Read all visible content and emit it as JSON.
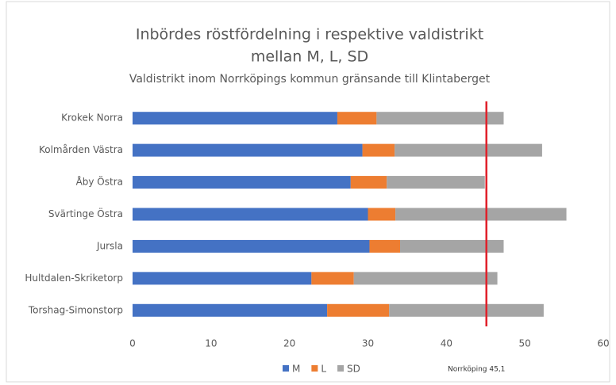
{
  "chart_data": {
    "type": "stacked-barh",
    "title": [
      "Inbördes röstfördelning i respektive valdistrikt",
      "mellan M, L, SD"
    ],
    "subtitle": "Valdistrikt inom Norrköpings kommun gränsande till Klintaberget",
    "categories": [
      "Krokek Norra",
      "Kolmården Västra",
      "Åby Östra",
      "Svärtinge Östra",
      "Jursla",
      "Hultdalen-Skriketorp",
      "Torshag-Simonstorp"
    ],
    "series": [
      {
        "name": "M",
        "color": "#4472c4",
        "values": [
          26.1,
          29.3,
          27.8,
          30.0,
          30.2,
          22.8,
          24.8
        ]
      },
      {
        "name": "L",
        "color": "#ed7d31",
        "values": [
          5.0,
          4.1,
          4.6,
          3.5,
          3.9,
          5.4,
          7.9
        ]
      },
      {
        "name": "SD",
        "color": "#a5a5a5",
        "values": [
          16.2,
          18.8,
          12.5,
          21.8,
          13.2,
          18.3,
          19.7
        ]
      }
    ],
    "xlim": [
      0,
      60
    ],
    "xticks": [
      0,
      10,
      20,
      30,
      40,
      50,
      60
    ],
    "reference_line": {
      "value": 45.1,
      "label": "Norrköping 45,1",
      "color": "#e0202a"
    },
    "legend": "bottom"
  }
}
